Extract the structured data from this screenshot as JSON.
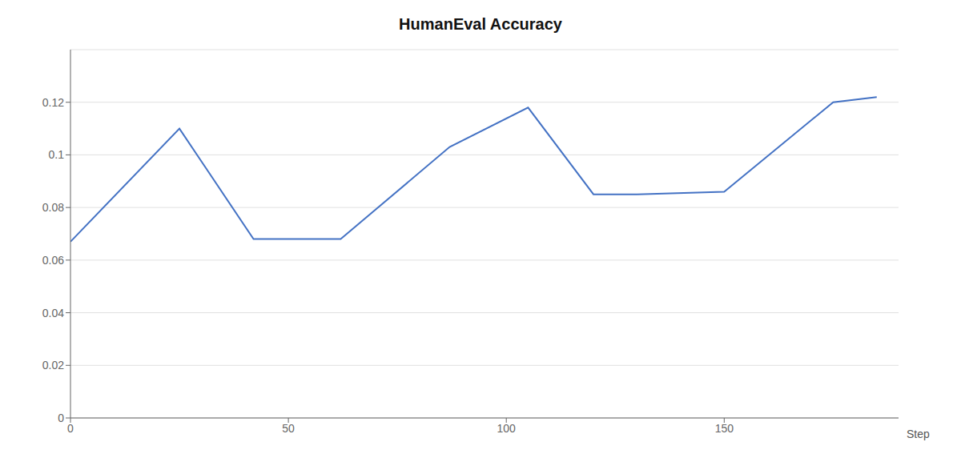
{
  "chart_data": {
    "type": "line",
    "title": "HumanEval Accuracy",
    "xlabel": "Step",
    "x": [
      0,
      25,
      42,
      62,
      87,
      105,
      120,
      130,
      150,
      175,
      185
    ],
    "values": [
      0.067,
      0.11,
      0.068,
      0.068,
      0.103,
      0.118,
      0.085,
      0.085,
      0.086,
      0.12,
      0.122
    ],
    "color": "#4472C4",
    "xlim": [
      0,
      190
    ],
    "ylim": [
      0,
      0.14
    ],
    "xticks": [
      0,
      50,
      100,
      150
    ],
    "yticks": [
      0,
      0.02,
      0.04,
      0.06,
      0.08,
      0.1,
      0.12
    ],
    "grid": true
  }
}
